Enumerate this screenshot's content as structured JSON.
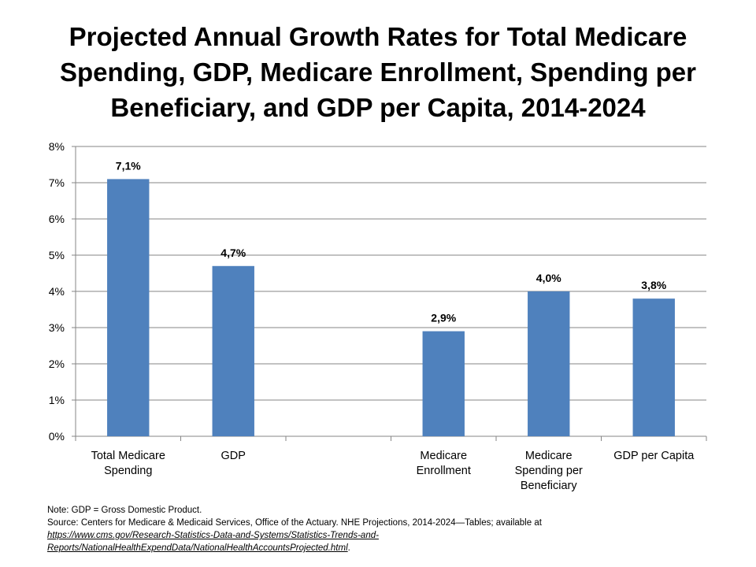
{
  "chart_data": {
    "type": "bar",
    "title": "Projected Annual Growth Rates for Total Medicare Spending, GDP, Medicare Enrollment, Spending per Beneficiary, and GDP per Capita, 2014-2024",
    "categories": [
      [
        "Total Medicare",
        "Spending"
      ],
      [
        "GDP"
      ],
      [
        ""
      ],
      [
        "Medicare",
        "Enrollment"
      ],
      [
        "Medicare",
        "Spending per",
        "Beneficiary"
      ],
      [
        "GDP per Capita"
      ]
    ],
    "values": [
      7.1,
      4.7,
      null,
      2.9,
      4.0,
      3.8
    ],
    "data_labels": [
      "7,1%",
      "4,7%",
      "",
      "2,9%",
      "4,0%",
      "3,8%"
    ],
    "yticks": [
      "0%",
      "1%",
      "2%",
      "3%",
      "4%",
      "5%",
      "6%",
      "7%",
      "8%"
    ],
    "ylim": [
      0,
      8
    ],
    "grid": true,
    "bar_color": "#4f81bd"
  },
  "notes": {
    "note": "Note: GDP = Gross Domestic Product.",
    "source": "Source: Centers for Medicare & Medicaid Services, Office of the Actuary. NHE Projections, 2014-2024—Tables; available at",
    "link_line1": "https://www.cms.gov/Research-Statistics-Data-and-Systems/Statistics-Trends-and-",
    "link_line2": "Reports/NationalHealthExpendData/NationalHealthAccountsProjected.html",
    "period": "."
  }
}
